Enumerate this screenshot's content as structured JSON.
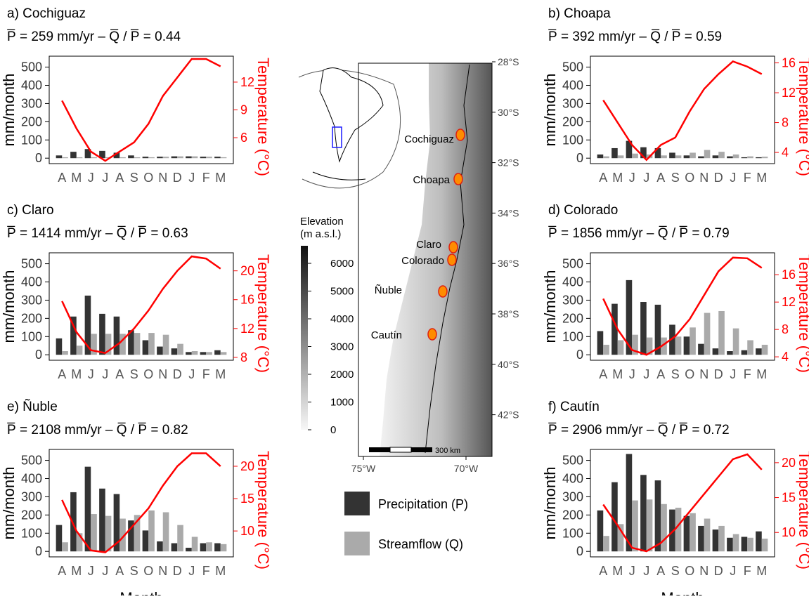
{
  "chart_data": [
    {
      "type": "bar",
      "title": "a) Cochiguaz",
      "subtitle": "P̅ = 259 mm/yr  –  Q̅ / P̅ = 0.44",
      "y_label": "mm/month",
      "y2_label": "Temperature (°C)",
      "categories": [
        "A",
        "M",
        "J",
        "J",
        "A",
        "S",
        "O",
        "N",
        "D",
        "J",
        "F",
        "M"
      ],
      "series": [
        {
          "color": "#333333",
          "values": [
            15,
            35,
            50,
            40,
            30,
            15,
            8,
            8,
            10,
            10,
            8,
            8
          ]
        },
        {
          "color": "#aaaaaa",
          "values": [
            5,
            5,
            5,
            5,
            5,
            5,
            5,
            8,
            10,
            10,
            8,
            5
          ]
        },
        {
          "type": "line",
          "axis": "y2",
          "color": "#ff0000",
          "values": [
            10,
            7,
            4.5,
            3.5,
            4.5,
            5.5,
            7.5,
            10.5,
            12.5,
            14.5,
            14.5,
            13.7
          ]
        }
      ],
      "ylim": [
        -30,
        560
      ],
      "yticks": [
        0,
        100,
        200,
        300,
        400,
        500
      ],
      "y2lim": [
        3.2,
        14.8
      ],
      "y2ticks": [
        6,
        9,
        12
      ]
    },
    {
      "type": "bar",
      "title": "b) Choapa",
      "subtitle": "P̅ = 392 mm/yr  –  Q̅ / P̅ = 0.59",
      "y_label": "mm/month",
      "y2_label": "Temperature (°C)",
      "categories": [
        "A",
        "M",
        "J",
        "J",
        "A",
        "S",
        "O",
        "N",
        "D",
        "J",
        "F",
        "M"
      ],
      "series": [
        {
          "color": "#333333",
          "values": [
            20,
            55,
            95,
            60,
            55,
            30,
            15,
            10,
            15,
            10,
            5,
            5
          ]
        },
        {
          "color": "#aaaaaa",
          "values": [
            10,
            15,
            25,
            20,
            15,
            15,
            30,
            45,
            35,
            20,
            10,
            8
          ]
        },
        {
          "type": "line",
          "axis": "y2",
          "color": "#ff0000",
          "values": [
            11,
            8,
            5,
            3,
            5,
            6,
            9.5,
            12.5,
            14.5,
            16.2,
            15.5,
            14.5
          ]
        }
      ],
      "ylim": [
        -30,
        560
      ],
      "yticks": [
        0,
        100,
        200,
        300,
        400,
        500
      ],
      "y2lim": [
        2.5,
        16.9
      ],
      "y2ticks": [
        4,
        8,
        12,
        16
      ]
    },
    {
      "type": "bar",
      "title": "c) Claro",
      "subtitle": "P̅ = 1414 mm/yr  –  Q̅ / P̅ = 0.63",
      "y_label": "mm/month",
      "y2_label": "Temperature (°C)",
      "categories": [
        "A",
        "M",
        "J",
        "J",
        "A",
        "S",
        "O",
        "N",
        "D",
        "J",
        "F",
        "M"
      ],
      "series": [
        {
          "color": "#333333",
          "values": [
            90,
            210,
            325,
            225,
            210,
            135,
            80,
            45,
            35,
            15,
            15,
            25
          ]
        },
        {
          "color": "#aaaaaa",
          "values": [
            20,
            50,
            115,
            115,
            115,
            120,
            120,
            110,
            60,
            20,
            15,
            15
          ]
        },
        {
          "type": "line",
          "axis": "y2",
          "color": "#ff0000",
          "values": [
            15.8,
            11.5,
            9,
            8.6,
            10,
            12,
            14.5,
            17.5,
            20,
            22,
            21.7,
            20.3
          ]
        }
      ],
      "ylim": [
        -30,
        560
      ],
      "yticks": [
        0,
        100,
        200,
        300,
        400,
        500
      ],
      "y2lim": [
        7.6,
        22.5
      ],
      "y2ticks": [
        8,
        12,
        16,
        20
      ]
    },
    {
      "type": "bar",
      "title": "d) Colorado",
      "subtitle": "P̅ = 1856 mm/yr  –  Q̅ / P̅ = 0.79",
      "y_label": "mm/month",
      "y2_label": "Temperature (°C)",
      "categories": [
        "A",
        "M",
        "J",
        "J",
        "A",
        "S",
        "O",
        "N",
        "D",
        "J",
        "F",
        "M"
      ],
      "series": [
        {
          "color": "#333333",
          "values": [
            130,
            280,
            410,
            290,
            275,
            165,
            100,
            60,
            35,
            20,
            25,
            35
          ]
        },
        {
          "color": "#aaaaaa",
          "values": [
            55,
            80,
            110,
            95,
            95,
            100,
            150,
            230,
            240,
            145,
            80,
            55
          ]
        },
        {
          "type": "line",
          "axis": "y2",
          "color": "#ff0000",
          "values": [
            12.5,
            8,
            5,
            4.3,
            5.5,
            7,
            9.5,
            13,
            16.5,
            18.5,
            18.4,
            17
          ]
        }
      ],
      "ylim": [
        -30,
        560
      ],
      "yticks": [
        0,
        100,
        200,
        300,
        400,
        500
      ],
      "y2lim": [
        3.5,
        19.2
      ],
      "y2ticks": [
        4,
        8,
        12,
        16
      ]
    },
    {
      "type": "bar",
      "title": "e) Ñuble",
      "subtitle": "P̅ = 2108 mm/yr  –  Q̅ / P̅ = 0.82",
      "y_label": "mm/month",
      "y2_label": "Temperature (°C)",
      "x_label": "Month",
      "categories": [
        "A",
        "M",
        "J",
        "J",
        "A",
        "S",
        "O",
        "N",
        "D",
        "J",
        "F",
        "M"
      ],
      "series": [
        {
          "color": "#333333",
          "values": [
            145,
            325,
            465,
            345,
            315,
            170,
            115,
            55,
            45,
            20,
            45,
            45
          ]
        },
        {
          "color": "#aaaaaa",
          "values": [
            50,
            100,
            205,
            195,
            180,
            200,
            225,
            215,
            145,
            80,
            50,
            40
          ]
        },
        {
          "type": "line",
          "axis": "y2",
          "color": "#ff0000",
          "values": [
            14.8,
            10,
            7,
            6.7,
            8.5,
            11,
            13.5,
            17,
            20,
            22,
            22,
            20
          ]
        }
      ],
      "ylim": [
        -30,
        560
      ],
      "yticks": [
        0,
        100,
        200,
        300,
        400,
        500
      ],
      "y2lim": [
        6,
        22.6
      ],
      "y2ticks": [
        10,
        15,
        20
      ]
    },
    {
      "type": "bar",
      "title": "f) Cautín",
      "subtitle": "P̅ = 2906 mm/yr  –  Q̅ / P̅ = 0.72",
      "y_label": "mm/month",
      "y2_label": "Temperature (°C)",
      "x_label": "Month",
      "categories": [
        "A",
        "M",
        "J",
        "J",
        "A",
        "S",
        "O",
        "N",
        "D",
        "J",
        "F",
        "M"
      ],
      "series": [
        {
          "color": "#333333",
          "values": [
            225,
            380,
            535,
            420,
            390,
            230,
            195,
            140,
            120,
            75,
            80,
            110
          ]
        },
        {
          "color": "#aaaaaa",
          "values": [
            85,
            150,
            280,
            285,
            260,
            240,
            210,
            180,
            140,
            95,
            75,
            70
          ]
        },
        {
          "type": "line",
          "axis": "y2",
          "color": "#ff0000",
          "values": [
            14,
            11,
            7.8,
            7.3,
            8.5,
            10.5,
            13,
            15.5,
            18,
            20.5,
            21.2,
            19
          ]
        }
      ],
      "ylim": [
        -30,
        560
      ],
      "yticks": [
        0,
        100,
        200,
        300,
        400,
        500
      ],
      "y2lim": [
        6.5,
        21.9
      ],
      "y2ticks": [
        10,
        15,
        20
      ]
    }
  ],
  "legend": [
    {
      "label": "Precipitation (P)",
      "color": "#333333"
    },
    {
      "label": "Streamflow (Q)",
      "color": "#aaaaaa"
    }
  ],
  "map": {
    "basins": [
      "Cochiguaz",
      "Choapa",
      "Claro",
      "Colorado",
      "Ñuble",
      "Cautín"
    ],
    "lat_labels": [
      "28°S",
      "30°S",
      "32°S",
      "34°S",
      "36°S",
      "38°S",
      "40°S",
      "42°S"
    ],
    "lon_labels": [
      "75°W",
      "70°W"
    ],
    "scale_label": "300 km",
    "elevation_title": [
      "Elevation",
      "(m a.s.l.)"
    ],
    "elevation_ticks": [
      0,
      1000,
      2000,
      3000,
      4000,
      5000,
      6000
    ]
  }
}
